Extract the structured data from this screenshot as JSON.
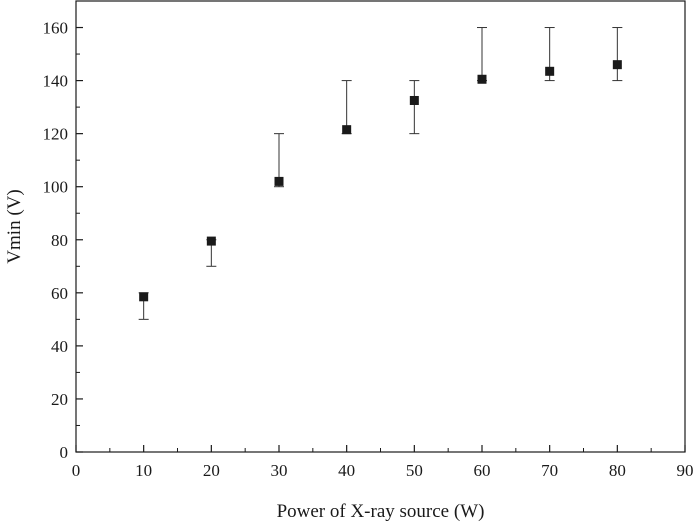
{
  "chart_data": {
    "type": "scatter",
    "xlabel": "Power of X-ray source (W)",
    "ylabel": "Vmin (V)",
    "xlim": [
      0,
      90
    ],
    "ylim": [
      0,
      170
    ],
    "xticks": [
      0,
      10,
      20,
      30,
      40,
      50,
      60,
      70,
      80,
      90
    ],
    "yticks": [
      0,
      20,
      40,
      60,
      80,
      100,
      120,
      140,
      160
    ],
    "grid": false,
    "marker": "square",
    "marker_color": "#1a1a1a",
    "series": [
      {
        "x": [
          10,
          20,
          30,
          40,
          50,
          60,
          70,
          80
        ],
        "y": [
          58.5,
          79.5,
          102,
          121.5,
          132.5,
          140.5,
          143.5,
          146
        ],
        "error_low": [
          50,
          70,
          100,
          120,
          120,
          140,
          140,
          140
        ],
        "error_high": [
          60,
          80,
          120,
          140,
          140,
          160,
          160,
          160
        ]
      }
    ]
  }
}
